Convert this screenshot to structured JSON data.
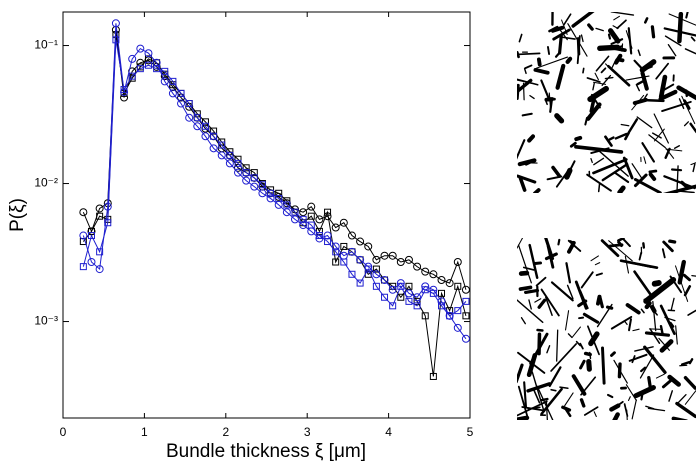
{
  "chart_data": {
    "type": "line",
    "xlabel": "Bundle thickness ξ [μm]",
    "ylabel": "P(ξ)",
    "xlim": [
      0,
      5
    ],
    "xticks": [
      0,
      1,
      2,
      3,
      4,
      5
    ],
    "ylim": [
      0.0002,
      0.175
    ],
    "log_y": true,
    "yticks": [
      {
        "value": 0.1,
        "label": "10⁻¹"
      },
      {
        "value": 0.01,
        "label": "10⁻²"
      },
      {
        "value": 0.001,
        "label": "10⁻³"
      }
    ],
    "x": [
      0.25,
      0.35,
      0.45,
      0.55,
      0.65,
      0.75,
      0.85,
      0.95,
      1.05,
      1.15,
      1.25,
      1.35,
      1.45,
      1.55,
      1.65,
      1.75,
      1.85,
      1.95,
      2.05,
      2.15,
      2.25,
      2.35,
      2.45,
      2.55,
      2.65,
      2.75,
      2.85,
      2.95,
      3.05,
      3.15,
      3.25,
      3.35,
      3.45,
      3.55,
      3.65,
      3.75,
      3.85,
      3.95,
      4.05,
      4.15,
      4.25,
      4.35,
      4.45,
      4.55,
      4.65,
      4.75,
      4.85,
      4.95
    ],
    "series": [
      {
        "color": "#000000",
        "marker": "circle",
        "values": [
          0.0062,
          0.0045,
          0.0066,
          0.0072,
          0.13,
          0.042,
          0.065,
          0.075,
          0.078,
          0.07,
          0.06,
          0.05,
          0.042,
          0.036,
          0.03,
          0.025,
          0.022,
          0.018,
          0.016,
          0.013,
          0.012,
          0.011,
          0.0095,
          0.0085,
          0.008,
          0.0072,
          0.0065,
          0.0062,
          0.0068,
          0.0055,
          0.0058,
          0.0048,
          0.0052,
          0.0042,
          0.0038,
          0.0035,
          0.0028,
          0.003,
          0.003,
          0.0027,
          0.0028,
          0.0025,
          0.0023,
          0.0022,
          0.002,
          0.0019,
          0.0027,
          0.0017
        ]
      },
      {
        "color": "#000000",
        "marker": "square",
        "values": [
          0.0038,
          0.0045,
          0.0058,
          0.0055,
          0.12,
          0.045,
          0.058,
          0.07,
          0.08,
          0.075,
          0.062,
          0.052,
          0.045,
          0.038,
          0.032,
          0.028,
          0.024,
          0.02,
          0.017,
          0.015,
          0.013,
          0.012,
          0.01,
          0.009,
          0.0085,
          0.0075,
          0.0062,
          0.0052,
          0.0058,
          0.0045,
          0.0062,
          0.0027,
          0.0035,
          0.0032,
          0.0028,
          0.0022,
          0.0024,
          0.002,
          0.0018,
          0.0015,
          0.0018,
          0.0014,
          0.0011,
          0.0004,
          0.0016,
          0.0012,
          0.0018,
          0.0011
        ]
      },
      {
        "color": "#1f1fd0",
        "marker": "circle",
        "values": [
          0.0042,
          0.0027,
          0.0024,
          0.0068,
          0.145,
          0.046,
          0.08,
          0.095,
          0.088,
          0.075,
          0.055,
          0.045,
          0.038,
          0.03,
          0.026,
          0.022,
          0.018,
          0.016,
          0.014,
          0.012,
          0.0105,
          0.0095,
          0.0085,
          0.0078,
          0.007,
          0.0062,
          0.0055,
          0.005,
          0.0045,
          0.004,
          0.0042,
          0.0035,
          0.003,
          0.0032,
          0.0028,
          0.0025,
          0.0022,
          0.002,
          0.0017,
          0.0019,
          0.0016,
          0.0015,
          0.0018,
          0.0017,
          0.0014,
          0.0011,
          0.0009,
          0.00075
        ]
      },
      {
        "color": "#1f1fd0",
        "marker": "square",
        "values": [
          0.0025,
          0.0042,
          0.0032,
          0.0052,
          0.11,
          0.048,
          0.06,
          0.068,
          0.072,
          0.068,
          0.065,
          0.055,
          0.045,
          0.038,
          0.03,
          0.026,
          0.022,
          0.019,
          0.016,
          0.014,
          0.012,
          0.011,
          0.0098,
          0.0085,
          0.0078,
          0.007,
          0.0062,
          0.0055,
          0.005,
          0.0042,
          0.0038,
          0.0032,
          0.0027,
          0.0022,
          0.0019,
          0.0024,
          0.0018,
          0.0015,
          0.0013,
          0.0018,
          0.0014,
          0.0013,
          0.0017,
          0.0016,
          0.0013,
          0.0011,
          0.0012,
          0.0014
        ]
      }
    ]
  }
}
